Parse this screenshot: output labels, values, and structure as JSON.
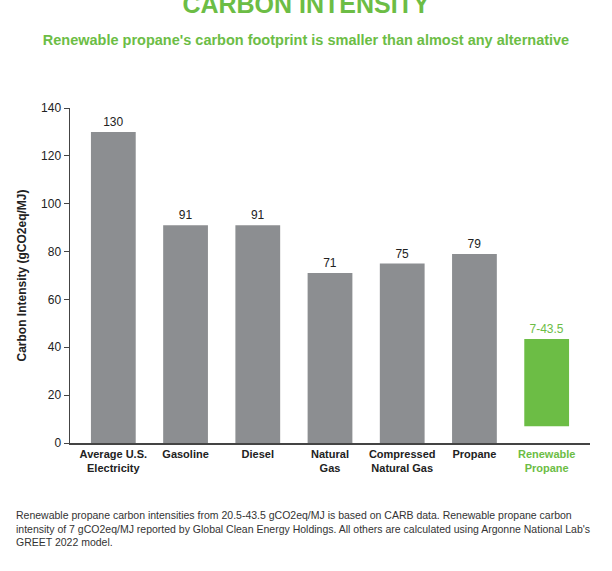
{
  "chart_data": {
    "type": "bar",
    "title": "CARBON INTENSITY",
    "subtitle": "Renewable propane's carbon footprint is smaller than almost any alternative",
    "y_label": "Carbon Intensity (gCO2eq/MJ)",
    "categories": [
      "Average U.S. Electricity",
      "Gasoline",
      "Diesel",
      "Natural Gas",
      "Compressed Natural Gas",
      "Propane",
      "Renewable Propane"
    ],
    "values": [
      130,
      91,
      91,
      71,
      75,
      79,
      [
        7,
        43.5
      ]
    ],
    "value_labels": [
      "130",
      "91",
      "91",
      "71",
      "75",
      "79",
      "7-43.5"
    ],
    "colors": [
      "#8c8e91",
      "#8c8e91",
      "#8c8e91",
      "#8c8e91",
      "#8c8e91",
      "#8c8e91",
      "#6cbd45"
    ],
    "ylim": [
      0,
      140
    ],
    "yticks": [
      0,
      20,
      40,
      60,
      80,
      100,
      120,
      140
    ],
    "grid": false,
    "data_labels": true,
    "annotations": [
      "Renewable propane carbon intensities from 20.5-43.5 gCO2eq/MJ is based on CARB data. Renewable propane carbon intensity of 7 gCO2eq/MJ reported by Global Clean Energy Holdings. All others are calculated using Argonne National Lab's GREET 2022 model."
    ]
  }
}
